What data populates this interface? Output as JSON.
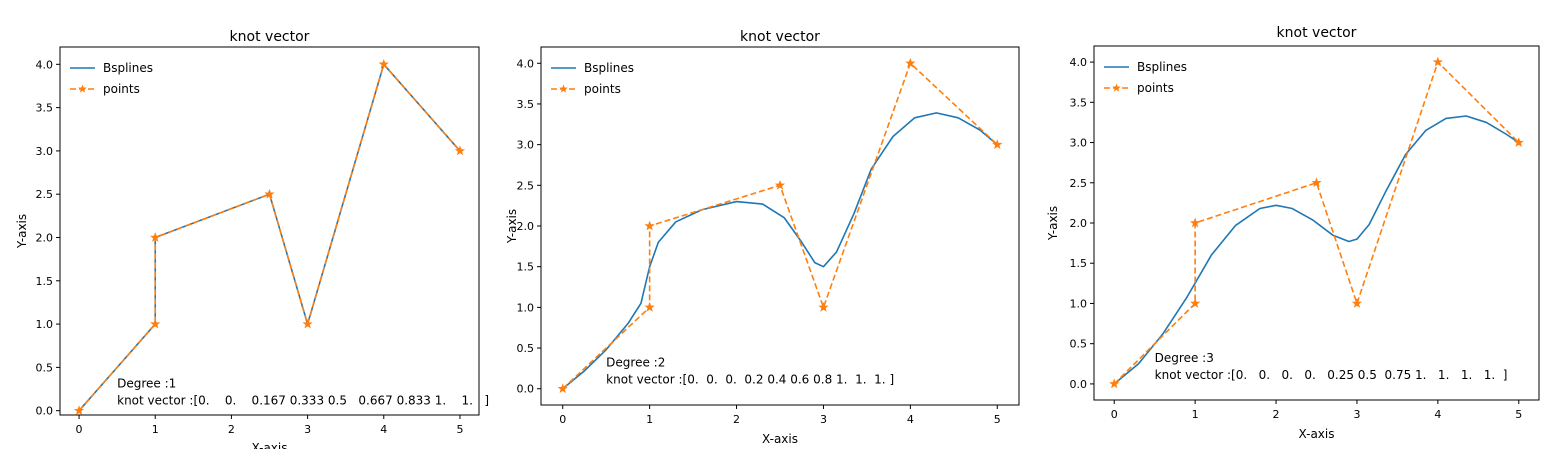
{
  "chart_data": [
    {
      "type": "line",
      "title": "knot vector",
      "xlabel": "X-axis",
      "ylabel": "Y-axis",
      "xlim": [
        -0.25,
        5.25
      ],
      "ylim": [
        -0.05,
        4.2
      ],
      "xticks": [
        "0",
        "1",
        "2",
        "3",
        "4",
        "5"
      ],
      "yticks": [
        "0.0",
        "0.5",
        "1.0",
        "1.5",
        "2.0",
        "2.5",
        "3.0",
        "3.5",
        "4.0"
      ],
      "grid": false,
      "legend_position": "top-left",
      "series": [
        {
          "name": "Bsplines",
          "color": "#1f77b4",
          "style": "solid",
          "x": [
            0,
            1,
            1,
            2.5,
            3,
            4,
            5
          ],
          "y": [
            0,
            1,
            2,
            2.5,
            1,
            4,
            3
          ]
        },
        {
          "name": "points",
          "color": "#ff7f0e",
          "style": "dashed",
          "marker": "star",
          "x": [
            0,
            1,
            1,
            2.5,
            3,
            4,
            5
          ],
          "y": [
            0,
            1,
            2,
            2.5,
            1,
            4,
            3
          ]
        }
      ],
      "annotation": {
        "degree_text": "Degree :1",
        "knot_text": "knot vector :[0.    0.    0.167 0.333 0.5   0.667 0.833 1.    1.   ]"
      }
    },
    {
      "type": "line",
      "title": "knot vector",
      "xlabel": "X-axis",
      "ylabel": "Y-axis",
      "xlim": [
        -0.25,
        5.25
      ],
      "ylim": [
        -0.2,
        4.2
      ],
      "xticks": [
        "0",
        "1",
        "2",
        "3",
        "4",
        "5"
      ],
      "yticks": [
        "0.0",
        "0.5",
        "1.0",
        "1.5",
        "2.0",
        "2.5",
        "3.0",
        "3.5",
        "4.0"
      ],
      "grid": false,
      "legend_position": "top-left",
      "series": [
        {
          "name": "Bsplines",
          "color": "#1f77b4",
          "style": "solid",
          "x": [
            0,
            0.25,
            0.5,
            0.75,
            0.9,
            1.0,
            1.1,
            1.3,
            1.6,
            2.0,
            2.3,
            2.55,
            2.75,
            2.9,
            3.0,
            3.15,
            3.35,
            3.55,
            3.8,
            4.05,
            4.3,
            4.55,
            4.8,
            5.0
          ],
          "y": [
            0,
            0.22,
            0.48,
            0.8,
            1.05,
            1.5,
            1.8,
            2.05,
            2.2,
            2.3,
            2.27,
            2.1,
            1.8,
            1.55,
            1.5,
            1.68,
            2.15,
            2.7,
            3.1,
            3.33,
            3.39,
            3.33,
            3.18,
            3.0
          ]
        },
        {
          "name": "points",
          "color": "#ff7f0e",
          "style": "dashed",
          "marker": "star",
          "x": [
            0,
            1,
            1,
            2.5,
            3,
            4,
            5
          ],
          "y": [
            0,
            1,
            2,
            2.5,
            1,
            4,
            3
          ]
        }
      ],
      "annotation": {
        "degree_text": "Degree :2",
        "knot_text": "knot vector :[0.  0.  0.  0.2 0.4 0.6 0.8 1.  1.  1. ]"
      }
    },
    {
      "type": "line",
      "title": "knot vector",
      "xlabel": "X-axis",
      "ylabel": "Y-axis",
      "xlim": [
        -0.25,
        5.25
      ],
      "ylim": [
        -0.2,
        4.2
      ],
      "xticks": [
        "0",
        "1",
        "2",
        "3",
        "4",
        "5"
      ],
      "yticks": [
        "0.0",
        "0.5",
        "1.0",
        "1.5",
        "2.0",
        "2.5",
        "3.0",
        "3.5",
        "4.0"
      ],
      "grid": false,
      "legend_position": "top-left",
      "series": [
        {
          "name": "Bsplines",
          "color": "#1f77b4",
          "style": "solid",
          "x": [
            0,
            0.3,
            0.6,
            0.9,
            1.2,
            1.5,
            1.8,
            2.0,
            2.2,
            2.45,
            2.7,
            2.9,
            3.0,
            3.15,
            3.35,
            3.6,
            3.85,
            4.1,
            4.35,
            4.6,
            4.85,
            5.0
          ],
          "y": [
            0,
            0.25,
            0.62,
            1.08,
            1.6,
            1.97,
            2.18,
            2.22,
            2.18,
            2.04,
            1.85,
            1.77,
            1.8,
            1.98,
            2.38,
            2.85,
            3.15,
            3.3,
            3.33,
            3.25,
            3.1,
            3.0
          ]
        },
        {
          "name": "points",
          "color": "#ff7f0e",
          "style": "dashed",
          "marker": "star",
          "x": [
            0,
            1,
            1,
            2.5,
            3,
            4,
            5
          ],
          "y": [
            0,
            1,
            2,
            2.5,
            1,
            4,
            3
          ]
        }
      ],
      "annotation": {
        "degree_text": "Degree :3",
        "knot_text": "knot vector :[0.   0.   0.   0.   0.25 0.5  0.75 1.   1.   1.   1.  ]"
      }
    }
  ]
}
